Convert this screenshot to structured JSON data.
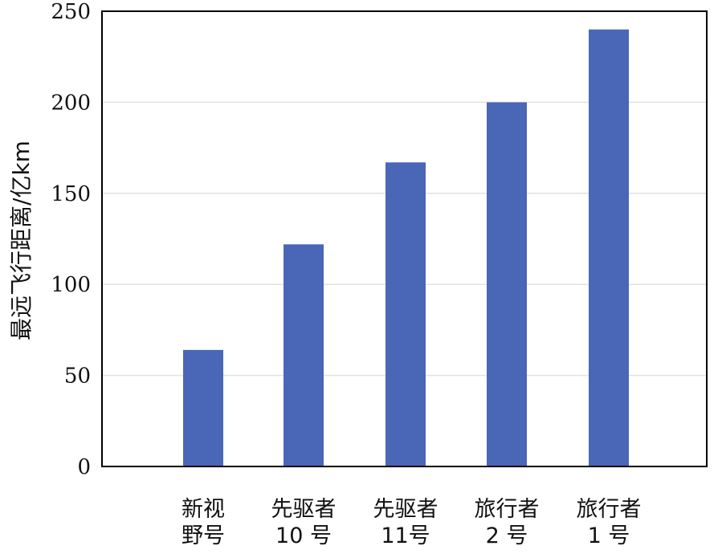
{
  "chart_data": {
    "type": "bar",
    "categories": [
      [
        "新视",
        "野号"
      ],
      [
        "先驱者",
        "10 号"
      ],
      [
        "先驱者",
        "11号"
      ],
      [
        "旅行者",
        "2 号"
      ],
      [
        "旅行者",
        "1 号"
      ]
    ],
    "values": [
      64,
      122,
      167,
      200,
      240
    ],
    "title": "",
    "xlabel": "",
    "ylabel": "最远飞行距离/亿km",
    "ylim": [
      0,
      250
    ],
    "yticks": [
      0,
      50,
      100,
      150,
      200,
      250
    ],
    "grid": true,
    "bar_color": "#4a66b7"
  }
}
